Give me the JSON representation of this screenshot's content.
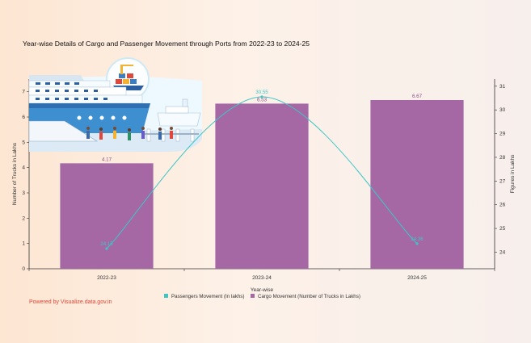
{
  "chart_data": {
    "type": "bar",
    "title": "Year-wise Details of Cargo and Passenger Movement through Ports from 2022-23 to 2024-25",
    "xlabel": "Year-wise",
    "categories": [
      "2022-23",
      "2023-24",
      "2024-25"
    ],
    "y_left": {
      "label": "Number of Trucks in Lakhs",
      "lim": [
        0,
        7.5
      ],
      "ticks": [
        0,
        1,
        2,
        3,
        4,
        5,
        6,
        7
      ]
    },
    "y_right": {
      "label": "Figures in Lakhs",
      "lim": [
        23.3,
        31.3
      ],
      "ticks": [
        24,
        25,
        26,
        27,
        28,
        29,
        30,
        31
      ]
    },
    "series": [
      {
        "name": "Passengers Movement (In lakhs)",
        "kind": "line",
        "axis": "right",
        "color": "#3ec6c6",
        "values": [
          24.15,
          30.55,
          24.36
        ],
        "labels": [
          "24.15",
          "30.55",
          "24.36"
        ]
      },
      {
        "name": "Cargo Movement (Number of Trucks in Lakhs)",
        "kind": "bar",
        "axis": "left",
        "color": "#a568a5",
        "values": [
          4.17,
          6.53,
          6.67
        ],
        "labels": [
          "4.17",
          "6.53",
          "6.67"
        ]
      }
    ],
    "legend_position": "bottom-center",
    "grid": false
  },
  "footer": {
    "credit": "Powered by Visualize.data.gov.in"
  },
  "colors": {
    "credit": "#e0473a",
    "axis": "#333333",
    "label_line": "#3ec6c6",
    "label_bar": "#8e4a8e"
  },
  "decoration": {
    "illustration": "ship-and-port-icon"
  }
}
